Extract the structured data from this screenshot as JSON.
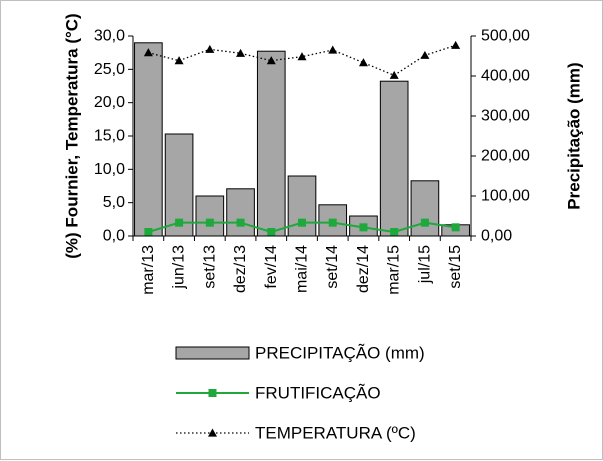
{
  "chart_data": {
    "type": "bar+line",
    "categories": [
      "mar/13",
      "jun/13",
      "set/13",
      "dez/13",
      "fev/14",
      "mai/14",
      "set/14",
      "dez/14",
      "mar/15",
      "jul/15",
      "set/15"
    ],
    "y_left": {
      "label": "(%) Fournier, Temperatura (°C)",
      "ticks": [
        "0,0",
        "5,0",
        "10,0",
        "15,0",
        "20,0",
        "25,0",
        "30,0"
      ],
      "ylim": [
        0,
        30
      ]
    },
    "y_right": {
      "label": "Precipitação (mm)",
      "ticks": [
        "0,00",
        "100,00",
        "200,00",
        "300,00",
        "400,00",
        "500,00"
      ],
      "ylim": [
        0,
        500
      ]
    },
    "series": [
      {
        "name": "PRECIPITAÇÃO (mm)",
        "kind": "bar",
        "axis": "right",
        "color": "#a6a6a6",
        "values": [
          483,
          255,
          100,
          118,
          462,
          150,
          78,
          50,
          387,
          138,
          28
        ]
      },
      {
        "name": "FRUTIFICAÇÃO",
        "kind": "line",
        "axis": "left",
        "color": "#1fa83c",
        "marker": "square",
        "values": [
          0.6,
          2.0,
          2.0,
          2.0,
          0.6,
          2.0,
          2.0,
          1.3,
          0.6,
          2.0,
          1.3
        ]
      },
      {
        "name": "TEMPERATURA (ºC)",
        "kind": "line",
        "axis": "left",
        "color": "#000000",
        "marker": "triangle",
        "dash": "dotted",
        "values": [
          27.5,
          26.3,
          28.0,
          27.4,
          26.3,
          26.9,
          27.9,
          26.0,
          24.1,
          27.1,
          28.6
        ]
      }
    ],
    "legend_position": "bottom",
    "grid": false
  }
}
